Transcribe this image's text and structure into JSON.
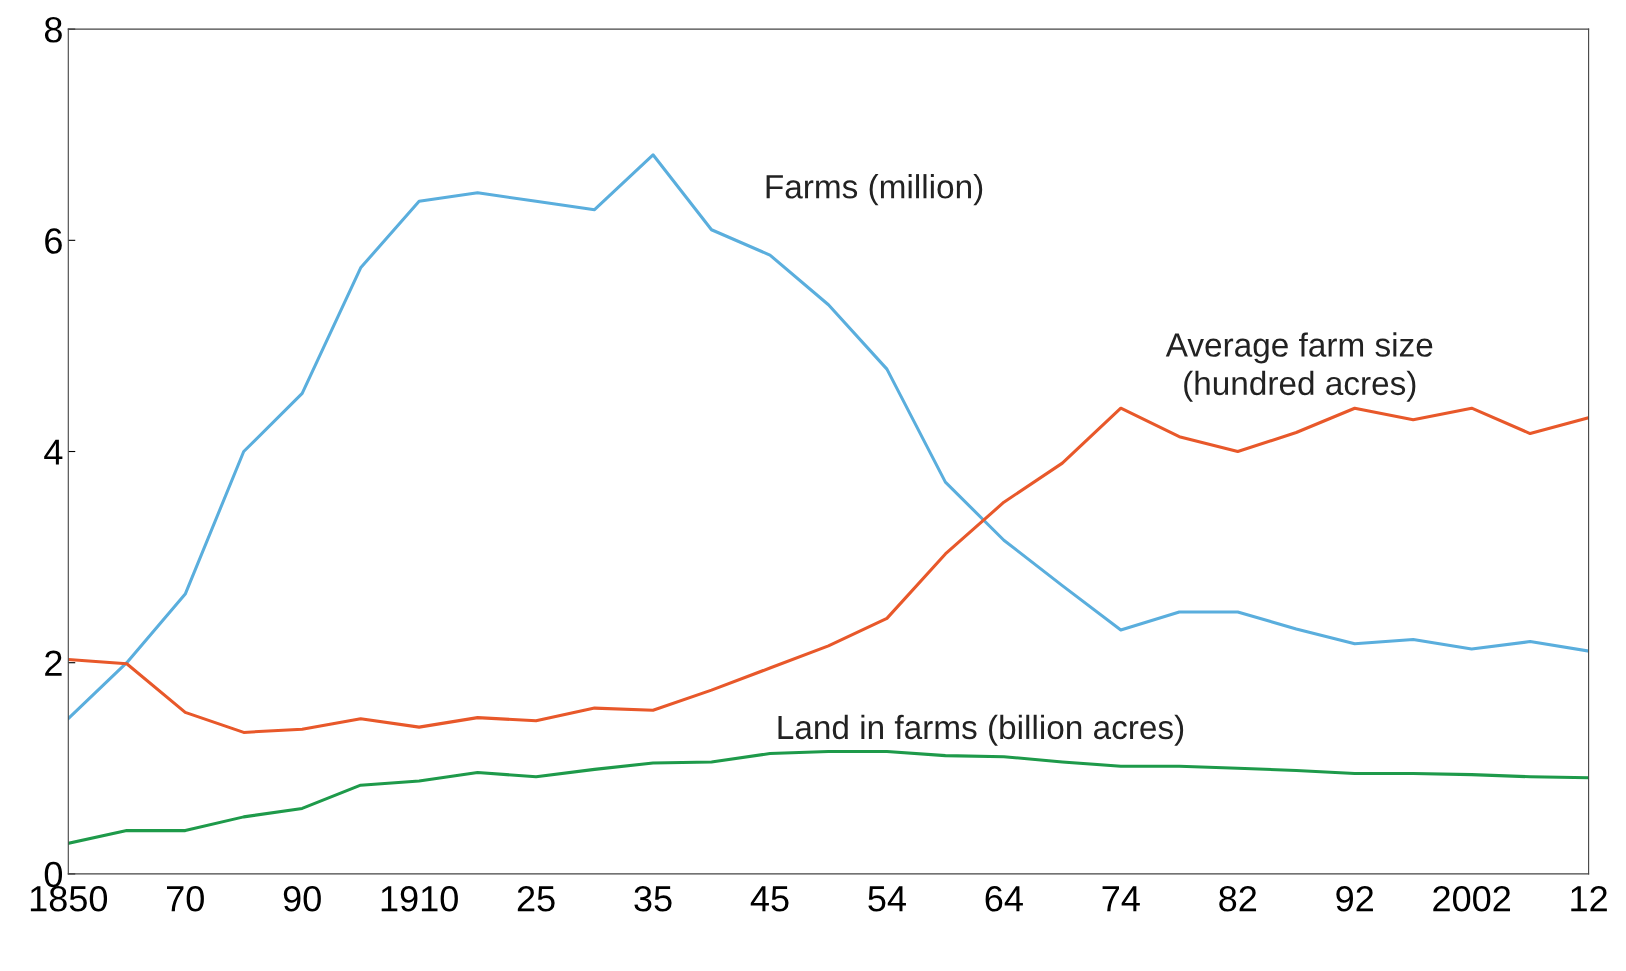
{
  "chart_data": {
    "type": "line",
    "categories": [
      "1850",
      null,
      "70",
      null,
      "90",
      null,
      "1910",
      null,
      "25",
      null,
      "35",
      null,
      "45",
      null,
      "54",
      null,
      "64",
      null,
      "74",
      null,
      "82",
      null,
      "92",
      null,
      "2002",
      null,
      "12"
    ],
    "ylim": [
      0,
      8
    ],
    "yticks": [
      0,
      2,
      4,
      6,
      8
    ],
    "series": [
      {
        "name": "Farms (million)",
        "color": "#5aaedd",
        "values": [
          1.47,
          2.0,
          2.65,
          4.0,
          4.55,
          5.74,
          6.37,
          6.45,
          6.37,
          6.29,
          6.81,
          6.1,
          5.86,
          5.39,
          4.78,
          3.71,
          3.16,
          2.73,
          2.31,
          2.48,
          2.48,
          2.32,
          2.18,
          2.22,
          2.13,
          2.2,
          2.11
        ]
      },
      {
        "name": "Average farm size\n(hundred acres)",
        "color": "#e8582a",
        "values": [
          2.03,
          1.99,
          1.53,
          1.34,
          1.37,
          1.47,
          1.39,
          1.48,
          1.45,
          1.57,
          1.55,
          1.74,
          1.95,
          2.16,
          2.42,
          3.03,
          3.52,
          3.89,
          4.41,
          4.14,
          4.0,
          4.18,
          4.41,
          4.3,
          4.41,
          4.17,
          4.32
        ]
      },
      {
        "name": "Land in farms (billion acres)",
        "color": "#1e9a4a",
        "values": [
          0.29,
          0.41,
          0.41,
          0.54,
          0.62,
          0.84,
          0.88,
          0.96,
          0.92,
          0.99,
          1.05,
          1.06,
          1.14,
          1.16,
          1.16,
          1.12,
          1.11,
          1.06,
          1.02,
          1.02,
          1.0,
          0.98,
          0.95,
          0.95,
          0.94,
          0.92,
          0.91
        ]
      }
    ]
  }
}
